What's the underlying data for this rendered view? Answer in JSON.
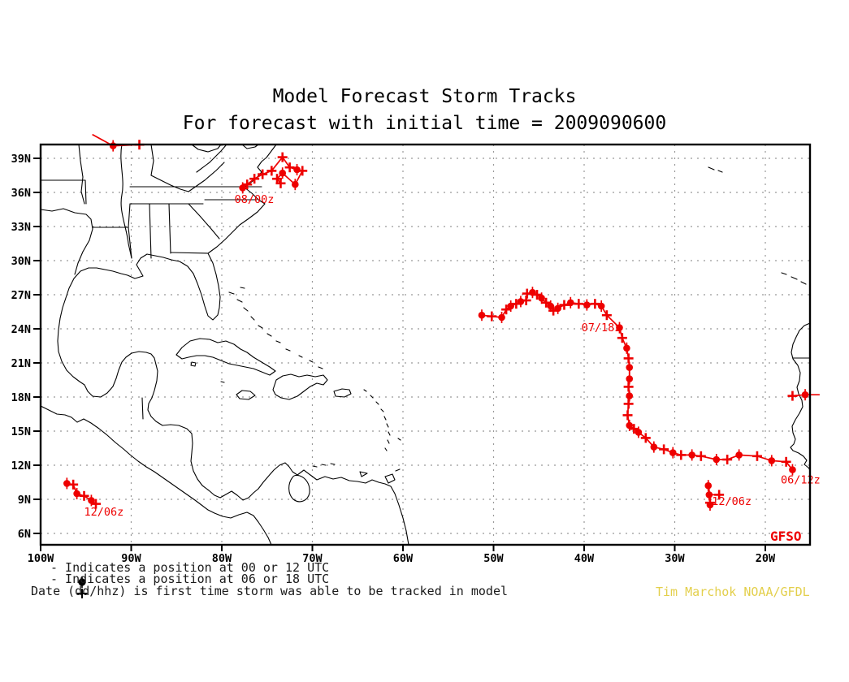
{
  "title": {
    "line1": "Model Forecast Storm Tracks",
    "line2": "For forecast with initial time = 2009090600"
  },
  "axes": {
    "y_labels": [
      "39N",
      "36N",
      "33N",
      "30N",
      "27N",
      "24N",
      "21N",
      "18N",
      "15N",
      "12N",
      "9N",
      "6N"
    ],
    "x_labels": [
      "100W",
      "90W",
      "80W",
      "70W",
      "60W",
      "50W",
      "40W",
      "30W",
      "20W"
    ]
  },
  "map": {
    "model_label": "GFSO"
  },
  "legend": {
    "symbol1": "circle-position-marker",
    "text1": "- Indicates a position at 00 or 12 UTC",
    "symbol2": "plus-position-marker",
    "text2": "- Indicates a position at 06 or 18 UTC",
    "text3": "Date (dd/hhz) is first time storm was able to be tracked in model"
  },
  "credit": "Tim Marchok NOAA/GFDL",
  "colors": {
    "track": "#ee0000",
    "credit": "#e3cf4b",
    "grid": "#999999",
    "coast": "#000000"
  },
  "chart_data": {
    "type": "storm-track-map",
    "model": "GFSO",
    "forecast_initial_time": "2009090600",
    "lon_axis": {
      "ticks_deg_west": [
        100,
        90,
        80,
        70,
        60,
        50,
        40,
        30,
        20
      ]
    },
    "lat_axis": {
      "ticks_deg_north": [
        39,
        36,
        33,
        30,
        27,
        24,
        21,
        18,
        15,
        12,
        9,
        6
      ]
    },
    "marker_legend": {
      "circle": "00 or 12 UTC",
      "plus": "06 or 18 UTC"
    },
    "tracks": [
      {
        "id": "northeast-us",
        "first_tracked": "08/00z",
        "label_anchor": [
          -78.6,
          35.8
        ],
        "points": [
          [
            -77.7,
            36.4,
            "c"
          ],
          [
            -77.2,
            36.7,
            "p"
          ],
          [
            -76.4,
            37.2,
            "p"
          ],
          [
            -75.5,
            37.6,
            "p"
          ],
          [
            -74.5,
            37.9,
            "p"
          ],
          [
            -73.3,
            39.1,
            "p"
          ],
          [
            -72.5,
            38.2,
            "p"
          ],
          [
            -71.7,
            38.0,
            "c"
          ],
          [
            -71.1,
            37.9,
            "p"
          ],
          [
            -71.9,
            36.7,
            "c"
          ],
          [
            -73.3,
            37.7,
            "c"
          ],
          [
            -73.9,
            37.2,
            "p"
          ],
          [
            -73.5,
            36.8,
            "p"
          ]
        ]
      },
      {
        "id": "great-lakes-edge",
        "first_tracked": null,
        "label_anchor": null,
        "points": [
          [
            -94.3,
            41.1,
            "n"
          ],
          [
            -92.0,
            40.1,
            "c"
          ],
          [
            -89.1,
            40.2,
            "p"
          ]
        ]
      },
      {
        "id": "west-atlantic",
        "first_tracked": "07/18z",
        "label_anchor": [
          -40.3,
          24.5
        ],
        "points": [
          [
            -51.3,
            25.2,
            "c"
          ],
          [
            -50.2,
            25.1,
            "p"
          ],
          [
            -49.1,
            25.0,
            "c"
          ],
          [
            -48.6,
            25.7,
            "p"
          ],
          [
            -48.1,
            26.0,
            "c"
          ],
          [
            -47.5,
            26.2,
            "p"
          ],
          [
            -47.0,
            26.4,
            "c"
          ],
          [
            -46.4,
            26.5,
            "p"
          ],
          [
            -46.3,
            27.1,
            "p"
          ],
          [
            -45.7,
            27.2,
            "c"
          ],
          [
            -45.2,
            27.0,
            "p"
          ],
          [
            -44.7,
            26.7,
            "c"
          ],
          [
            -44.2,
            26.3,
            "p"
          ],
          [
            -43.7,
            26.0,
            "c"
          ],
          [
            -43.4,
            25.6,
            "p"
          ],
          [
            -42.9,
            25.8,
            "c"
          ],
          [
            -42.2,
            26.1,
            "p"
          ],
          [
            -41.5,
            26.3,
            "c"
          ],
          [
            -40.6,
            26.2,
            "p"
          ],
          [
            -39.7,
            26.1,
            "c"
          ],
          [
            -38.8,
            26.2,
            "p"
          ],
          [
            -38.1,
            26.0,
            "c"
          ],
          [
            -37.5,
            25.2,
            "p"
          ],
          [
            -36.1,
            24.1,
            "n"
          ]
        ]
      },
      {
        "id": "east-atlantic",
        "first_tracked": "06/12z",
        "label_anchor": [
          -18.3,
          11.1
        ],
        "points": [
          [
            -17.0,
            11.6,
            "c"
          ],
          [
            -17.7,
            12.3,
            "p"
          ],
          [
            -19.3,
            12.4,
            "c"
          ],
          [
            -20.9,
            12.8,
            "p"
          ],
          [
            -22.9,
            12.9,
            "c"
          ],
          [
            -24.2,
            12.5,
            "p"
          ],
          [
            -25.4,
            12.5,
            "c"
          ],
          [
            -27.1,
            12.8,
            "p"
          ],
          [
            -28.1,
            12.9,
            "c"
          ],
          [
            -29.3,
            12.9,
            "p"
          ],
          [
            -30.2,
            13.1,
            "c"
          ],
          [
            -31.2,
            13.4,
            "p"
          ],
          [
            -32.3,
            13.6,
            "c"
          ],
          [
            -33.2,
            14.4,
            "p"
          ],
          [
            -34.0,
            14.9,
            "c"
          ],
          [
            -34.5,
            15.2,
            "p"
          ],
          [
            -35.0,
            15.5,
            "c"
          ],
          [
            -35.2,
            16.4,
            "p"
          ],
          [
            -35.1,
            17.4,
            "p"
          ],
          [
            -35.0,
            18.1,
            "c"
          ],
          [
            -35.1,
            18.9,
            "p"
          ],
          [
            -35.0,
            19.6,
            "c"
          ],
          [
            -35.0,
            20.6,
            "c"
          ],
          [
            -35.1,
            21.4,
            "p"
          ],
          [
            -35.3,
            22.3,
            "c"
          ],
          [
            -35.8,
            23.2,
            "p"
          ],
          [
            -36.1,
            24.1,
            "c"
          ]
        ]
      },
      {
        "id": "east-pacific",
        "first_tracked": "12/06z",
        "label_anchor": [
          -95.2,
          8.3
        ],
        "points": [
          [
            -97.1,
            10.4,
            "c"
          ],
          [
            -96.4,
            10.3,
            "p"
          ],
          [
            -96.0,
            9.5,
            "c"
          ],
          [
            -95.2,
            9.3,
            "p"
          ],
          [
            -94.4,
            8.9,
            "c"
          ],
          [
            -93.9,
            8.6,
            "p"
          ]
        ]
      },
      {
        "id": "central-atlantic",
        "first_tracked": "12/06z",
        "label_anchor": [
          -25.9,
          9.2
        ],
        "points": [
          [
            -26.3,
            10.2,
            "c"
          ],
          [
            -26.2,
            9.4,
            "c"
          ],
          [
            -25.1,
            9.4,
            "p"
          ]
        ]
      },
      {
        "id": "central-atlantic-branch",
        "first_tracked": null,
        "label_anchor": null,
        "points": [
          [
            -26.2,
            9.4,
            "n"
          ],
          [
            -26.1,
            8.7,
            "p"
          ],
          [
            -26.1,
            8.5,
            "c"
          ]
        ]
      },
      {
        "id": "east-edge",
        "first_tracked": null,
        "label_anchor": null,
        "points": [
          [
            -17.0,
            18.1,
            "p"
          ],
          [
            -15.6,
            18.2,
            "c"
          ],
          [
            -14.0,
            18.2,
            "n"
          ]
        ]
      }
    ]
  }
}
